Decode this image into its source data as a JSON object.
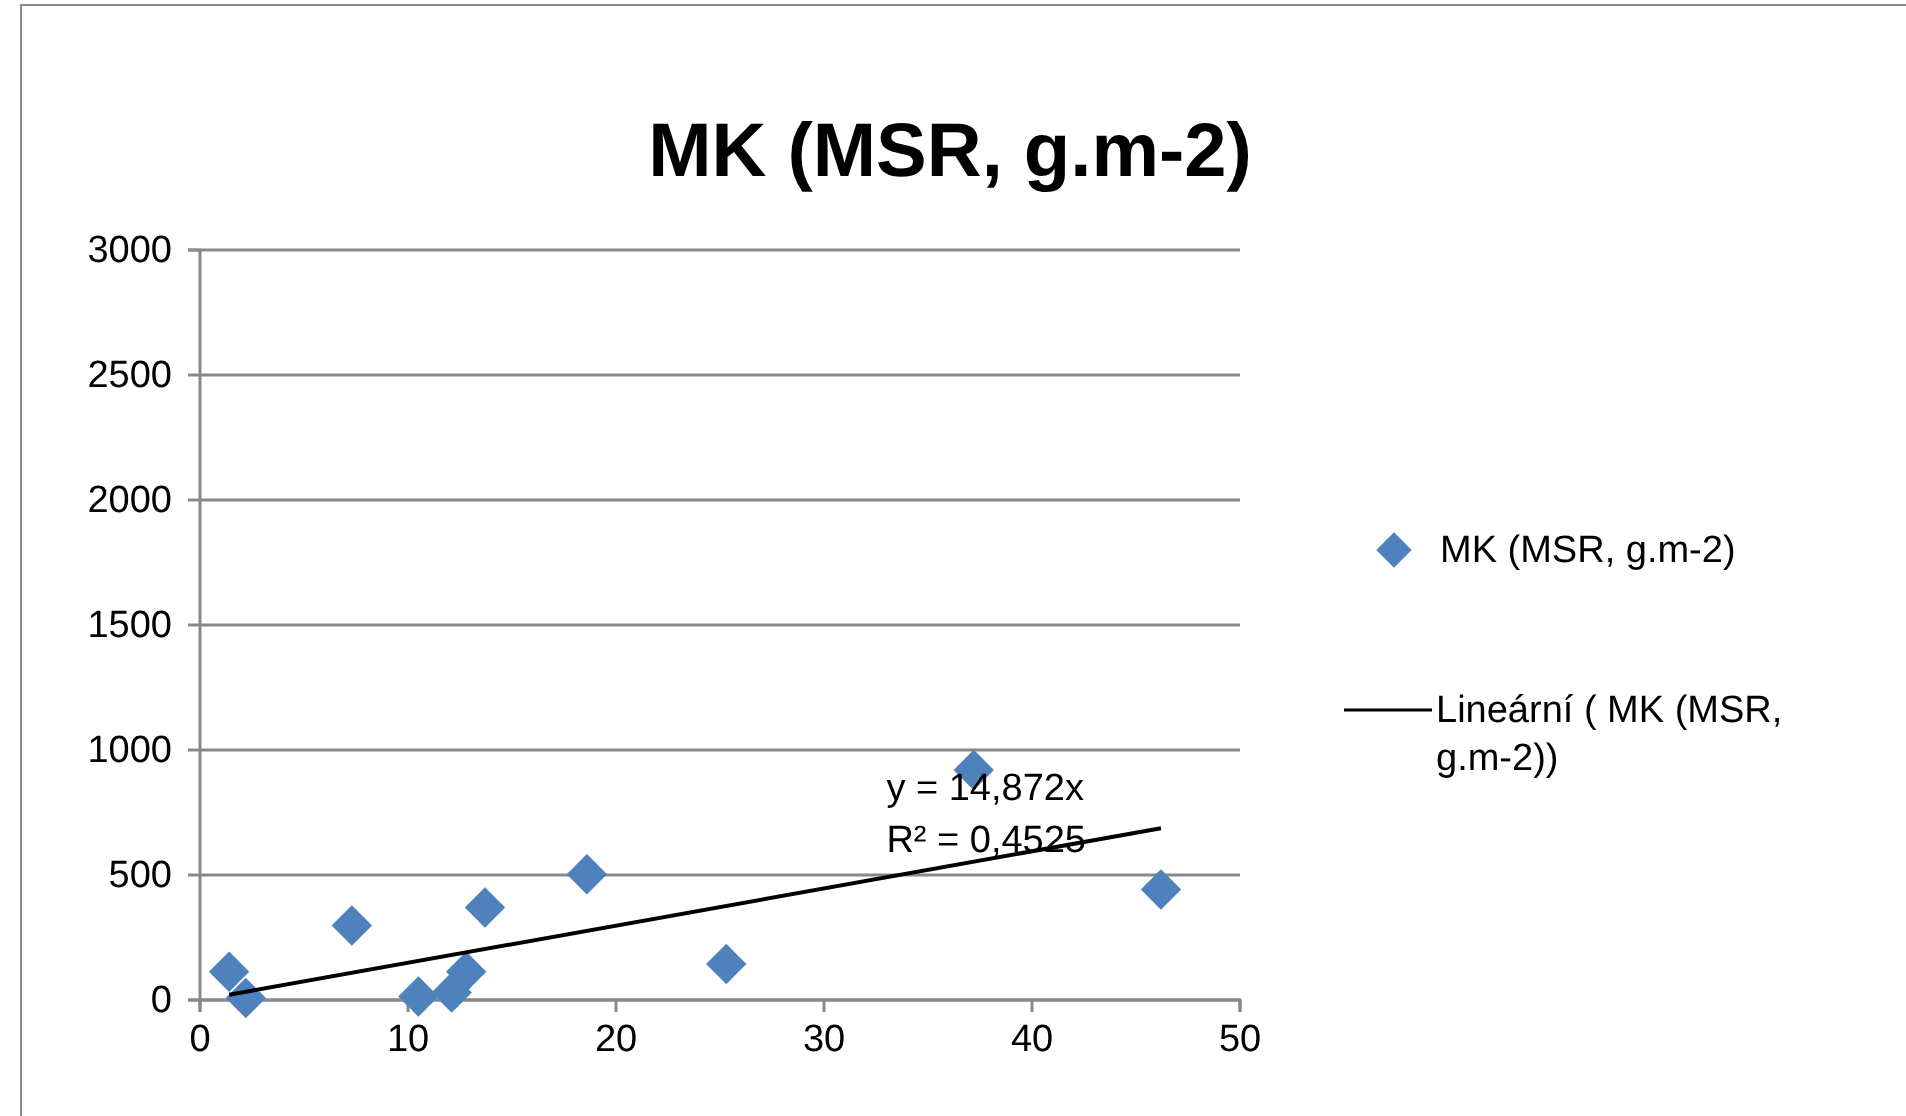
{
  "chart_data": {
    "type": "scatter",
    "title": "MK (MSR, g.m-2)",
    "xlim": [
      0,
      50
    ],
    "xticks": [
      0,
      10,
      20,
      30,
      40,
      50
    ],
    "ylim": [
      0,
      3000
    ],
    "yticks": [
      0,
      500,
      1000,
      1500,
      2000,
      2500,
      3000
    ],
    "grid": "y",
    "legend": "right",
    "series": [
      {
        "name": "MK (MSR, g.m-2)",
        "marker": "diamond",
        "color": "#4f81bd",
        "x": [
          1.4,
          2.2,
          7.3,
          10.5,
          12.1,
          12.8,
          13.7,
          18.6,
          25.3,
          37.2,
          46.2
        ],
        "values": [
          113,
          8,
          298,
          14,
          30,
          113,
          370,
          503,
          144,
          920,
          442
        ]
      },
      {
        "name": "Lineární ( MK (MSR, g.m-2))",
        "type": "line",
        "marker": "none",
        "color": "#000000",
        "line_style": "solid",
        "x": [
          1.4,
          46.2
        ],
        "values": [
          21,
          687
        ]
      }
    ],
    "annotations": [
      "y = 14,872x",
      "R² = 0,4525"
    ]
  }
}
